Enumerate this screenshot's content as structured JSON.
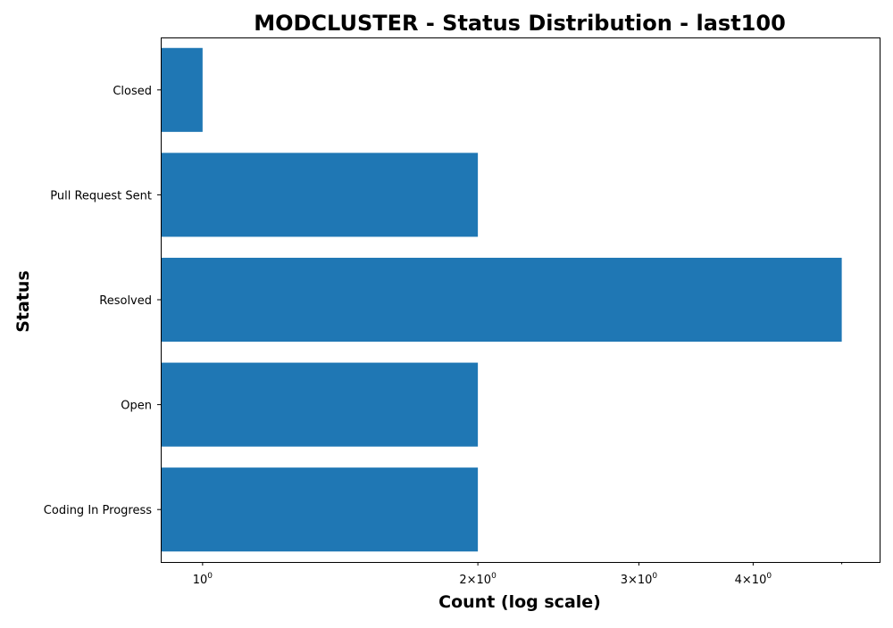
{
  "chart_data": {
    "type": "bar",
    "orientation": "horizontal",
    "title": "MODCLUSTER - Status Distribution - last100",
    "xlabel": "Count (log scale)",
    "ylabel": "Status",
    "x_scale": "log",
    "xlim": [
      0.9,
      5.5
    ],
    "categories": [
      "Closed",
      "Pull Request Sent",
      "Resolved",
      "Open",
      "Coding In Progress"
    ],
    "values": [
      1,
      2,
      5,
      2,
      2
    ],
    "bar_color": "#1f77b4",
    "grid": false,
    "legend": "none",
    "x_ticks": [
      {
        "value": 1,
        "base": "10",
        "exp": "0"
      },
      {
        "value": 2,
        "base": "2×10",
        "exp": "0"
      },
      {
        "value": 3,
        "base": "3×10",
        "exp": "0"
      },
      {
        "value": 4,
        "base": "4×10",
        "exp": "0"
      }
    ],
    "x_minor_ticks": [
      5
    ]
  }
}
